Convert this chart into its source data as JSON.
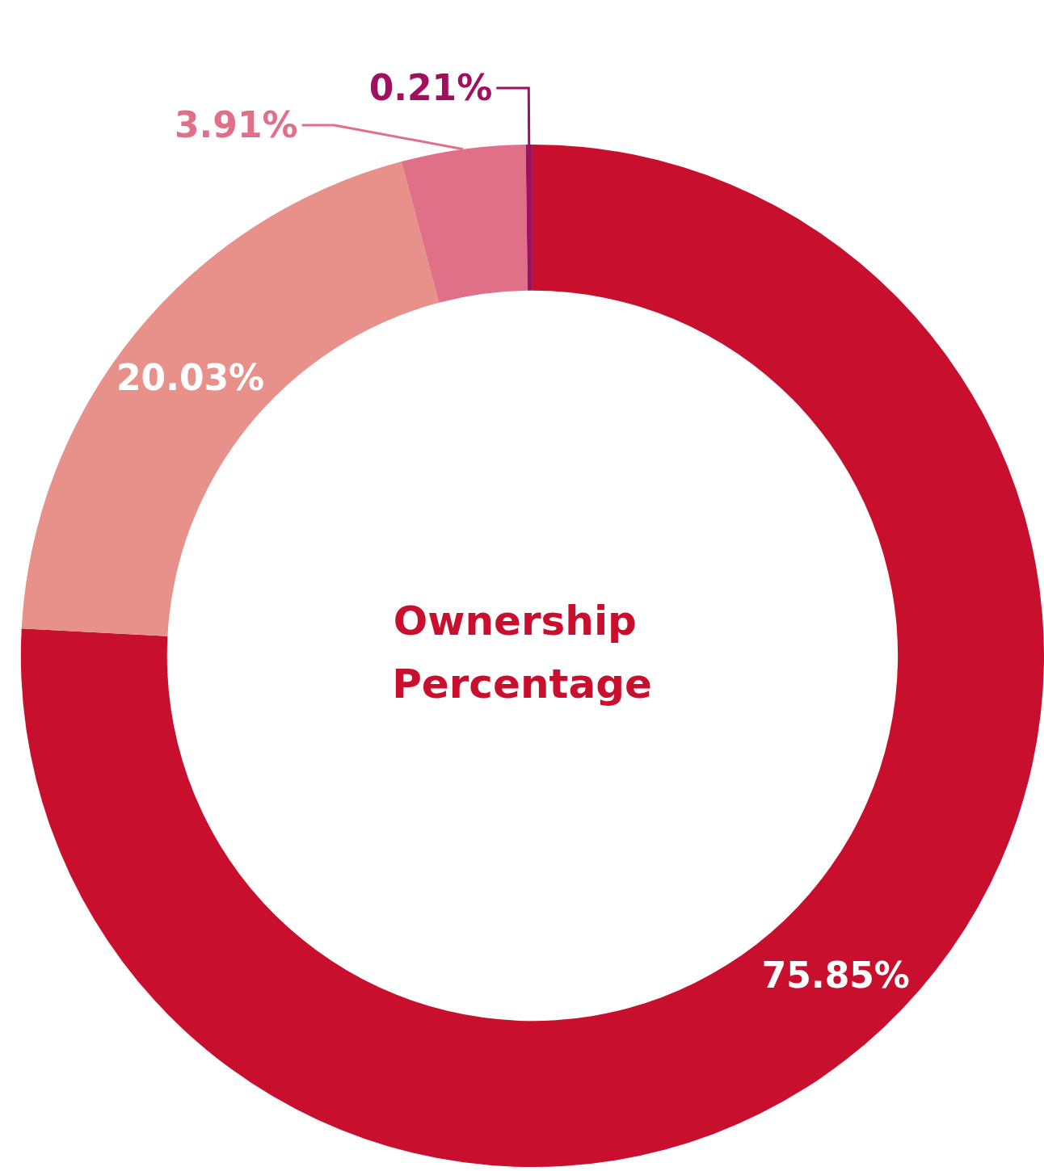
{
  "chart_data": {
    "type": "donut",
    "title": "Ownership Percentage",
    "categories": [
      null,
      null,
      null,
      null
    ],
    "values": [
      75.85,
      20.03,
      3.91,
      0.21
    ],
    "colors": [
      "#c8102e",
      "#e8908a",
      "#e07088",
      "#a0105e"
    ],
    "value_labels": [
      "75.85%",
      "20.03%",
      "3.91%",
      "0.21%"
    ]
  }
}
